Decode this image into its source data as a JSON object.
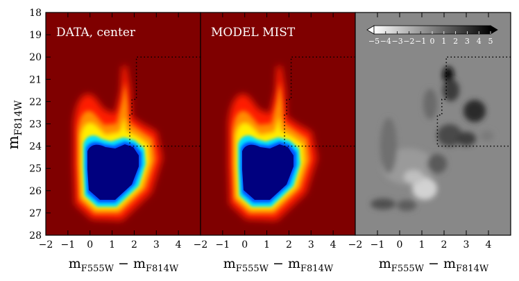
{
  "chart_data": [
    {
      "type": "heatmap",
      "panel_label": "DATA, center",
      "xlabel": "m",
      "xlabel_sub_left": "F555W",
      "xlabel_minus": " − m",
      "xlabel_sub_right": "F814W",
      "ylabel": "m",
      "ylabel_sub": "F814W",
      "xlim": [
        -2,
        5
      ],
      "ylim": [
        28,
        18
      ],
      "x_ticks": [
        -2,
        -1,
        0,
        1,
        2,
        3,
        4
      ],
      "x_tick_labels": [
        "−2",
        "−1",
        "0",
        "1",
        "2",
        "3",
        "4"
      ],
      "y_ticks": [
        18,
        19,
        20,
        21,
        22,
        23,
        24,
        25,
        26,
        27,
        28
      ],
      "y_tick_labels": [
        "18",
        "19",
        "20",
        "21",
        "22",
        "23",
        "24",
        "25",
        "26",
        "27",
        "28"
      ],
      "colormap": "jet",
      "region_outline": [
        [
          5,
          20
        ],
        [
          2.1,
          20
        ],
        [
          2.1,
          21.9
        ],
        [
          1.9,
          21.9
        ],
        [
          1.9,
          22.6
        ],
        [
          1.8,
          22.6
        ],
        [
          1.8,
          24
        ],
        [
          5,
          24
        ]
      ]
    },
    {
      "type": "heatmap",
      "panel_label": "MODEL MIST",
      "xlabel": "m",
      "xlabel_sub_left": "F555W",
      "xlabel_minus": " − m",
      "xlabel_sub_right": "F814W",
      "xlim": [
        -2,
        5
      ],
      "ylim": [
        28,
        18
      ],
      "x_ticks": [
        -2,
        -1,
        0,
        1,
        2,
        3,
        4
      ],
      "x_tick_labels": [
        "−2",
        "−1",
        "0",
        "1",
        "2",
        "3",
        "4"
      ],
      "colormap": "jet",
      "region_outline": [
        [
          5,
          20
        ],
        [
          2.1,
          20
        ],
        [
          2.1,
          21.9
        ],
        [
          1.9,
          21.9
        ],
        [
          1.9,
          22.6
        ],
        [
          1.8,
          22.6
        ],
        [
          1.8,
          24
        ],
        [
          5,
          24
        ]
      ]
    },
    {
      "type": "heatmap",
      "panel_label": "",
      "xlabel": "m",
      "xlabel_sub_left": "F555W",
      "xlabel_minus": " − m",
      "xlabel_sub_right": "F814W",
      "xlim": [
        -2,
        5
      ],
      "ylim": [
        28,
        18
      ],
      "x_ticks": [
        -2,
        -1,
        0,
        1,
        2,
        3,
        4
      ],
      "x_tick_labels": [
        "−2",
        "−1",
        "0",
        "1",
        "2",
        "3",
        "4"
      ],
      "colormap": "gray_r",
      "colorbar": {
        "range": [
          -5,
          5
        ],
        "ticks": [
          -5,
          -4,
          -3,
          -2,
          -1,
          0,
          1,
          2,
          3,
          4,
          5
        ],
        "tick_labels": [
          "−5",
          "−4",
          "−3",
          "−2",
          "−1",
          "0",
          "1",
          "2",
          "3",
          "4",
          "5"
        ],
        "extend": "both",
        "placement": "top"
      },
      "region_outline": [
        [
          5,
          20
        ],
        [
          2.1,
          20
        ],
        [
          2.1,
          21.9
        ],
        [
          1.9,
          21.9
        ],
        [
          1.9,
          22.6
        ],
        [
          1.7,
          22.6
        ],
        [
          1.7,
          24
        ],
        [
          5,
          24
        ]
      ]
    }
  ],
  "colors": {
    "jet_background": "#7f0000",
    "jet_peak": "#00007f",
    "residual_background": "#888888"
  }
}
